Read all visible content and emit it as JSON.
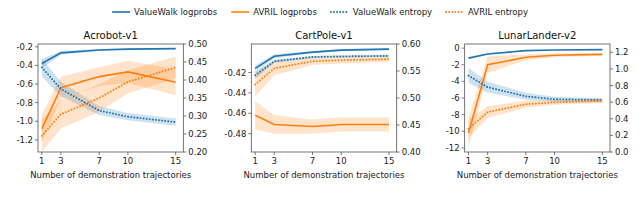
{
  "chart_data": [
    {
      "type": "line",
      "title": "Acrobot-v1",
      "xlabel": "Number of demonstration trajectories",
      "x": [
        1,
        3,
        7,
        10,
        15
      ],
      "xlim": [
        0.6,
        15.8
      ],
      "xticks": [
        1,
        3,
        7,
        10,
        15
      ],
      "ylim": [
        -1.33,
        -0.17
      ],
      "yticks": [
        -1.2,
        {
          "value": -1,
          "label": "-1.0"
        },
        -0.8,
        -0.6,
        -0.4,
        -0.2
      ],
      "y2lim": [
        0.2,
        0.5
      ],
      "y2ticks": [
        {
          "value": 0.2,
          "label": "0.20"
        },
        0.25,
        {
          "value": 0.3,
          "label": "0.30"
        },
        0.35,
        {
          "value": 0.4,
          "label": "0.40"
        },
        0.45,
        {
          "value": 0.5,
          "label": "0.50"
        }
      ],
      "grid": false,
      "series": [
        {
          "color": "#1f77b4",
          "line_style": "solid",
          "values": [
            -0.38,
            -0.265,
            -0.235,
            -0.225,
            -0.22
          ],
          "std": [
            0.05,
            0.02,
            0.01,
            0.008,
            0.006
          ]
        },
        {
          "color": "#ff7f0e",
          "line_style": "solid",
          "values": [
            -1.08,
            -0.64,
            -0.52,
            -0.47,
            -0.58
          ],
          "std": [
            0.15,
            0.12,
            0.1,
            0.12,
            0.14
          ]
        },
        {
          "color": "#1f77b4",
          "line_style": "dotted",
          "axis": "y2",
          "values": [
            0.435,
            0.375,
            0.315,
            0.298,
            0.283
          ],
          "std": [
            0.025,
            0.02,
            0.012,
            0.01,
            0.01
          ]
        },
        {
          "color": "#ff7f0e",
          "line_style": "dotted",
          "axis": "y2",
          "values": [
            0.245,
            0.305,
            0.35,
            0.395,
            0.435
          ],
          "std": [
            0.045,
            0.04,
            0.038,
            0.032,
            0.03
          ]
        }
      ]
    },
    {
      "type": "line",
      "title": "CartPole-v1",
      "xlabel": "Number of demonstration trajectories",
      "x": [
        1,
        3,
        7,
        10,
        15
      ],
      "xlim": [
        0.6,
        15.8
      ],
      "xticks": [
        1,
        3,
        7,
        10,
        15
      ],
      "ylim": [
        -0.498,
        -0.392
      ],
      "yticks": [
        -0.48,
        -0.46,
        -0.44,
        -0.42
      ],
      "y2lim": [
        0.4,
        0.6
      ],
      "y2ticks": [
        {
          "value": 0.4,
          "label": "0.40"
        },
        0.45,
        {
          "value": 0.5,
          "label": "0.50"
        },
        0.55,
        {
          "value": 0.6,
          "label": "0.60"
        }
      ],
      "grid": false,
      "legend": "top",
      "series": [
        {
          "name": "ValueWalk logprobs",
          "color": "#1f77b4",
          "line_style": "solid",
          "values": [
            -0.416,
            -0.404,
            -0.4,
            -0.398,
            -0.397
          ],
          "std": [
            0.003,
            0.002,
            0.001,
            0.001,
            0.001
          ]
        },
        {
          "name": "AVRIL logprobs",
          "color": "#ff7f0e",
          "line_style": "solid",
          "values": [
            -0.462,
            -0.471,
            -0.473,
            -0.471,
            -0.471
          ],
          "std": [
            0.014,
            0.009,
            0.007,
            0.007,
            0.007
          ]
        },
        {
          "name": "ValueWalk entropy",
          "color": "#1f77b4",
          "line_style": "dotted",
          "axis": "y2",
          "values": [
            0.542,
            0.568,
            0.576,
            0.577,
            0.578
          ],
          "std": [
            0.007,
            0.003,
            0.002,
            0.002,
            0.002
          ]
        },
        {
          "name": "AVRIL entropy",
          "color": "#ff7f0e",
          "line_style": "dotted",
          "axis": "y2",
          "values": [
            0.525,
            0.555,
            0.568,
            0.57,
            0.572
          ],
          "std": [
            0.022,
            0.013,
            0.007,
            0.006,
            0.005
          ]
        }
      ]
    },
    {
      "type": "line",
      "title": "LunarLander-v2",
      "xlabel": "Number of demonstration trajectories",
      "x": [
        1,
        3,
        7,
        10,
        15
      ],
      "xlim": [
        0.6,
        15.8
      ],
      "xticks": [
        1,
        3,
        7,
        10,
        15
      ],
      "ylim": [
        -12.5,
        0.5
      ],
      "yticks": [
        -12,
        -10,
        -8,
        -6,
        -4,
        -2,
        0
      ],
      "y2lim": [
        0.0,
        1.3
      ],
      "y2ticks": [
        {
          "value": 0,
          "label": "0.0"
        },
        0.2,
        0.4,
        0.6,
        0.8,
        {
          "value": 1,
          "label": "1.0"
        },
        1.2
      ],
      "grid": false,
      "series": [
        {
          "color": "#1f77b4",
          "line_style": "solid",
          "values": [
            -1.2,
            -0.7,
            -0.3,
            -0.22,
            -0.18
          ],
          "std": [
            0.12,
            0.09,
            0.05,
            0.03,
            0.025
          ]
        },
        {
          "color": "#ff7f0e",
          "line_style": "solid",
          "values": [
            -10.2,
            -2.0,
            -1.1,
            -0.85,
            -0.75
          ],
          "std": [
            1.8,
            1.0,
            0.35,
            0.22,
            0.16
          ]
        },
        {
          "color": "#1f77b4",
          "line_style": "dotted",
          "axis": "y2",
          "values": [
            0.92,
            0.78,
            0.67,
            0.635,
            0.625
          ],
          "std": [
            0.09,
            0.065,
            0.042,
            0.03,
            0.025
          ]
        },
        {
          "color": "#ff7f0e",
          "line_style": "dotted",
          "axis": "y2",
          "values": [
            0.28,
            0.48,
            0.575,
            0.598,
            0.615
          ],
          "std": [
            0.11,
            0.07,
            0.042,
            0.03,
            0.025
          ]
        }
      ]
    }
  ]
}
